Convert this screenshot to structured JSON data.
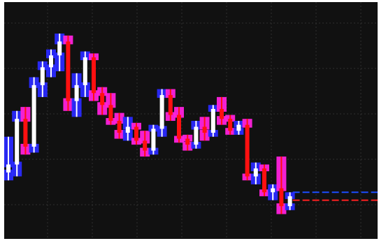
{
  "chart_data": {
    "type": "candlestick",
    "title": "",
    "xlabel": "",
    "ylabel": "",
    "ylim": [
      0,
      100
    ],
    "grid": true,
    "legend": "none",
    "colors": {
      "background": "#111111",
      "grid": "#2f2f2f",
      "up_body": "#ffffff",
      "up_shadow": "#2a2aff",
      "down_body": "#ff1010",
      "down_shadow": "#ff22dd",
      "current_line": "#1d4dff",
      "prev_line": "#ff2020"
    },
    "candles": [
      {
        "o": 24,
        "h": 42,
        "l": 20,
        "c": 28
      },
      {
        "o": 28,
        "h": 55,
        "l": 22,
        "c": 51
      },
      {
        "o": 51,
        "h": 57,
        "l": 33,
        "c": 37
      },
      {
        "o": 37,
        "h": 72,
        "l": 34,
        "c": 68
      },
      {
        "o": 68,
        "h": 80,
        "l": 62,
        "c": 77
      },
      {
        "o": 77,
        "h": 86,
        "l": 72,
        "c": 83
      },
      {
        "o": 83,
        "h": 94,
        "l": 75,
        "c": 90
      },
      {
        "o": 90,
        "h": 93,
        "l": 55,
        "c": 60
      },
      {
        "o": 60,
        "h": 74,
        "l": 52,
        "c": 68
      },
      {
        "o": 68,
        "h": 85,
        "l": 62,
        "c": 82
      },
      {
        "o": 82,
        "h": 84,
        "l": 60,
        "c": 64
      },
      {
        "o": 64,
        "h": 67,
        "l": 53,
        "c": 58
      },
      {
        "o": 58,
        "h": 64,
        "l": 48,
        "c": 50
      },
      {
        "o": 50,
        "h": 54,
        "l": 41,
        "c": 44
      },
      {
        "o": 44,
        "h": 52,
        "l": 40,
        "c": 47
      },
      {
        "o": 47,
        "h": 49,
        "l": 38,
        "c": 40
      },
      {
        "o": 40,
        "h": 45,
        "l": 32,
        "c": 35
      },
      {
        "o": 35,
        "h": 48,
        "l": 33,
        "c": 46
      },
      {
        "o": 46,
        "h": 66,
        "l": 42,
        "c": 63
      },
      {
        "o": 63,
        "h": 66,
        "l": 50,
        "c": 53
      },
      {
        "o": 53,
        "h": 57,
        "l": 39,
        "c": 41
      },
      {
        "o": 41,
        "h": 43,
        "l": 35,
        "c": 38
      },
      {
        "o": 38,
        "h": 50,
        "l": 36,
        "c": 47
      },
      {
        "o": 47,
        "h": 52,
        "l": 40,
        "c": 44
      },
      {
        "o": 44,
        "h": 58,
        "l": 42,
        "c": 56
      },
      {
        "o": 56,
        "h": 62,
        "l": 48,
        "c": 51
      },
      {
        "o": 51,
        "h": 53,
        "l": 43,
        "c": 45
      },
      {
        "o": 45,
        "h": 50,
        "l": 43,
        "c": 48
      },
      {
        "o": 48,
        "h": 51,
        "l": 20,
        "c": 22
      },
      {
        "o": 22,
        "h": 29,
        "l": 18,
        "c": 26
      },
      {
        "o": 26,
        "h": 28,
        "l": 12,
        "c": 14
      },
      {
        "o": 14,
        "h": 18,
        "l": 10,
        "c": 16
      },
      {
        "o": 16,
        "h": 32,
        "l": 3,
        "c": 7
      },
      {
        "o": 7,
        "h": 14,
        "l": 5,
        "c": 12
      }
    ],
    "current_level": 14,
    "prev_level": 10
  }
}
